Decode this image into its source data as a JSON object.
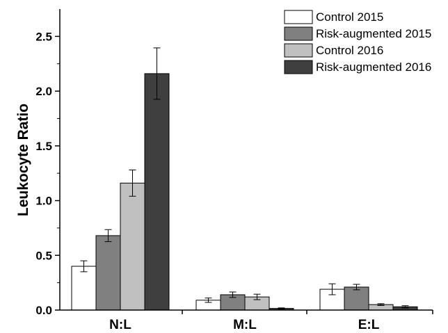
{
  "chart_data": {
    "type": "bar",
    "title": "",
    "xlabel": "",
    "ylabel": "Leukocyte Ratio",
    "ylim": [
      0,
      2.75
    ],
    "yticks": [
      "0.0",
      "0.5",
      "1.0",
      "1.5",
      "2.0",
      "2.5"
    ],
    "categories": [
      "N:L",
      "M:L",
      "E:L"
    ],
    "grid": false,
    "legend_position": "top-right",
    "series": [
      {
        "name": "Control 2015",
        "color": "#ffffff",
        "values": [
          0.4,
          0.09,
          0.19
        ],
        "errors": [
          0.05,
          0.02,
          0.05
        ]
      },
      {
        "name": "Risk-augmented 2015",
        "color": "#808080",
        "values": [
          0.68,
          0.14,
          0.21
        ],
        "errors": [
          0.055,
          0.025,
          0.025
        ]
      },
      {
        "name": "Control 2016",
        "color": "#c0c0c0",
        "values": [
          1.16,
          0.12,
          0.05
        ],
        "errors": [
          0.12,
          0.025,
          0.008
        ]
      },
      {
        "name": "Risk-augmented 2016",
        "color": "#3f3f3f",
        "values": [
          2.16,
          0.015,
          0.03
        ],
        "errors": [
          0.235,
          0.005,
          0.01
        ]
      }
    ]
  }
}
